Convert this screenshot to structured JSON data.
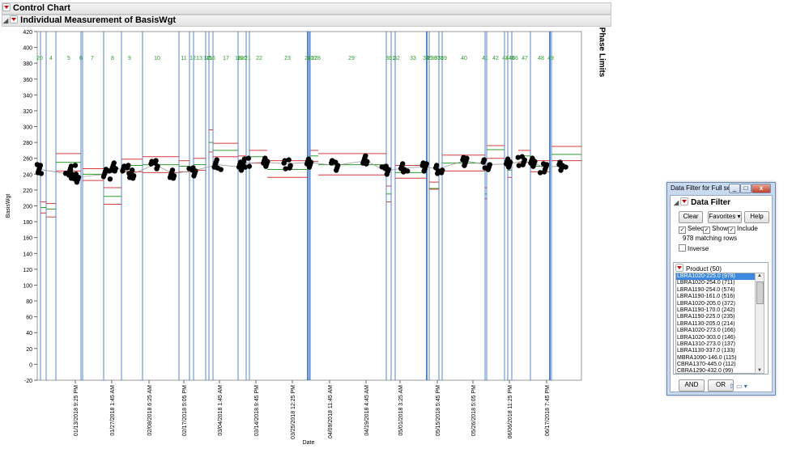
{
  "outline": {
    "control_chart_title": "Control Chart",
    "section_title": "Individual Measurement of BasisWgt"
  },
  "phase_limits_label": "Phase Limits",
  "chart_data": {
    "type": "scatter",
    "title": "",
    "xlabel": "Date",
    "ylabel": "BasisWgt",
    "ylim": [
      -20,
      420
    ],
    "yticks": [
      -20,
      0,
      20,
      40,
      60,
      80,
      100,
      120,
      140,
      160,
      180,
      200,
      220,
      240,
      260,
      280,
      300,
      320,
      340,
      360,
      380,
      400,
      420
    ],
    "xticks": [
      "01/13/2018 9:25 PM",
      "01/27/2018 1:45 AM",
      "02/08/2018 6:25 AM",
      "02/17/2018 5:05 PM",
      "03/04/2018 1:45 AM",
      "03/14/2018 9:45 PM",
      "03/25/2018 12:25 PM",
      "04/09/2018 11:45 AM",
      "04/19/2018 4:45 AM",
      "05/01/2018 3:25 AM",
      "05/15/2018 5:45 PM",
      "05/26/2018 5:05 PM",
      "06/06/2018 11:25 PM",
      "06/17/2018 7:45 PM"
    ],
    "phase_labels": [
      "20",
      "4",
      "5",
      "6",
      "7",
      "8",
      "9",
      "10",
      "11",
      "12",
      "13",
      "14",
      "15",
      "16",
      "17",
      "18",
      "19",
      "20",
      "21",
      "22",
      "23",
      "24",
      "25",
      "27",
      "28",
      "29",
      "30",
      "31",
      "32",
      "33",
      "34",
      "35",
      "36",
      "37",
      "38",
      "39",
      "40",
      "41",
      "42",
      "43",
      "44",
      "45",
      "46",
      "47",
      "48",
      "49"
    ],
    "grid": false,
    "points": [
      {
        "x": "01/05/2018",
        "y": 246
      },
      {
        "x": "01/14/2018",
        "y": 240
      },
      {
        "x": "01/15/2018",
        "y": 246
      },
      {
        "x": "01/16/2018",
        "y": 236
      },
      {
        "x": "01/26/2018",
        "y": 240
      },
      {
        "x": "01/28/2018",
        "y": 248
      },
      {
        "x": "02/01/2018",
        "y": 245
      },
      {
        "x": "02/03/2018",
        "y": 240
      },
      {
        "x": "02/10/2018",
        "y": 252
      },
      {
        "x": "02/16/2018",
        "y": 241
      },
      {
        "x": "02/22/2018",
        "y": 244
      },
      {
        "x": "03/02/2018",
        "y": 252
      },
      {
        "x": "03/09/2018",
        "y": 249
      },
      {
        "x": "03/11/2018",
        "y": 254
      },
      {
        "x": "03/17/2018",
        "y": 255
      },
      {
        "x": "03/24/2018",
        "y": 253
      },
      {
        "x": "03/31/2018",
        "y": 255
      },
      {
        "x": "04/08/2018",
        "y": 251
      },
      {
        "x": "04/18/2018",
        "y": 257
      },
      {
        "x": "04/24/2018",
        "y": 244
      },
      {
        "x": "04/30/2018",
        "y": 248
      },
      {
        "x": "05/06/2018",
        "y": 249
      },
      {
        "x": "05/11/2018",
        "y": 247
      },
      {
        "x": "05/19/2018",
        "y": 257
      },
      {
        "x": "05/26/2018",
        "y": 252
      },
      {
        "x": "06/02/2018",
        "y": 253
      },
      {
        "x": "06/06/2018",
        "y": 256
      },
      {
        "x": "06/10/2018",
        "y": 255
      },
      {
        "x": "06/13/2018",
        "y": 248
      },
      {
        "x": "06/19/2018",
        "y": 251
      }
    ],
    "colors": {
      "limit": "#d43d3d",
      "center": "#2d9b2d",
      "phase": "#1f5fbf",
      "point": "#000000",
      "avg": "#999999"
    }
  },
  "data_filter": {
    "window_title": "Data Filter for Full se...",
    "header": "Data Filter",
    "clear_label": "Clear",
    "favorites_label": "Favorites",
    "help_label": "Help",
    "select_label": "Select",
    "show_label": "Show",
    "include_label": "Include",
    "matching_rows": "978 matching rows",
    "inverse_label": "Inverse",
    "product_header": "Product (50)",
    "and_label": "AND",
    "or_label": "OR",
    "products": [
      "LBRA1020-225.0 (978)",
      "LBRA1020-254.0 (711)",
      "LBRA1190-254.0 (574)",
      "LBRA1190-161.0 (516)",
      "LBRA1020-205.0 (372)",
      "LBRA1190-170.0 (242)",
      "LBRA1190-225.0 (235)",
      "LBRA1130-205.0 (214)",
      "LBRA1020-273.0 (166)",
      "LBRA1020-303.0 (146)",
      "LBRA1310-273.0 (137)",
      "LBRA1130-337.0 (133)",
      "MBRA1090-146.0 (115)",
      "CBRA1370-445.0 (112)",
      "CBRA1290-432.0 (99)"
    ]
  }
}
